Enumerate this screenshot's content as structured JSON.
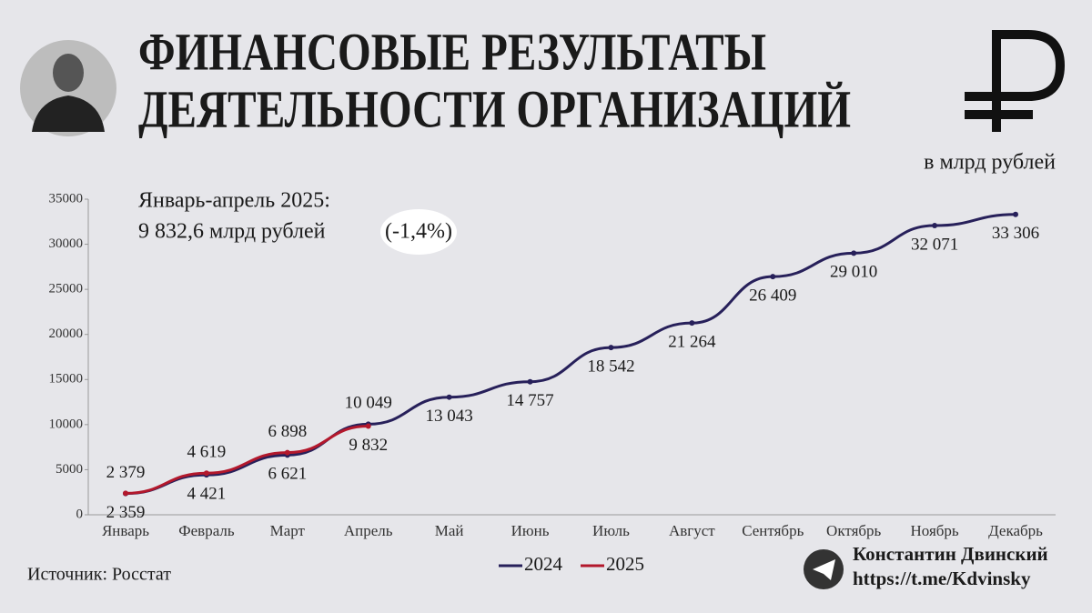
{
  "chart_data": {
    "type": "line",
    "title": [
      "ФИНАНСОВЫЕ РЕЗУЛЬТАТЫ",
      "ДЕЯТЕЛЬНОСТИ ОРГАНИЗАЦИЙ"
    ],
    "subtitle": "в млрд рублей",
    "annotation": {
      "line1": "Январь-апрель 2025:",
      "line2": "9 832,6 млрд рублей",
      "change": "(-1,4%)"
    },
    "source": "Источник: Росстат",
    "author": {
      "name": "Константин Двинский",
      "link": "https://t.me/Kdvinsky"
    },
    "categories": [
      "Январь",
      "Февраль",
      "Март",
      "Апрель",
      "Май",
      "Июнь",
      "Июль",
      "Август",
      "Сентябрь",
      "Октябрь",
      "Ноябрь",
      "Декабрь"
    ],
    "series": [
      {
        "name": "2024",
        "color": "#27205a",
        "values": [
          2359,
          4421,
          6621,
          10049,
          13043,
          14757,
          18542,
          21264,
          26409,
          29010,
          32071,
          33306
        ],
        "value_labels": [
          "2 359",
          "4 421",
          "6 621",
          "10 049",
          "13 043",
          "14 757",
          "18 542",
          "21 264",
          "26 409",
          "29 010",
          "32 071",
          "33 306"
        ]
      },
      {
        "name": "2025",
        "color": "#b3182c",
        "values": [
          2379,
          4619,
          6898,
          9832,
          null,
          null,
          null,
          null,
          null,
          null,
          null,
          null
        ],
        "value_labels": [
          "2 379",
          "4 619",
          "6 898",
          "9 832",
          null,
          null,
          null,
          null,
          null,
          null,
          null,
          null
        ]
      }
    ],
    "ylim": [
      0,
      35000
    ],
    "yticks": [
      0,
      5000,
      10000,
      15000,
      20000,
      25000,
      30000,
      35000
    ],
    "grid": false,
    "legend": "bottom"
  }
}
